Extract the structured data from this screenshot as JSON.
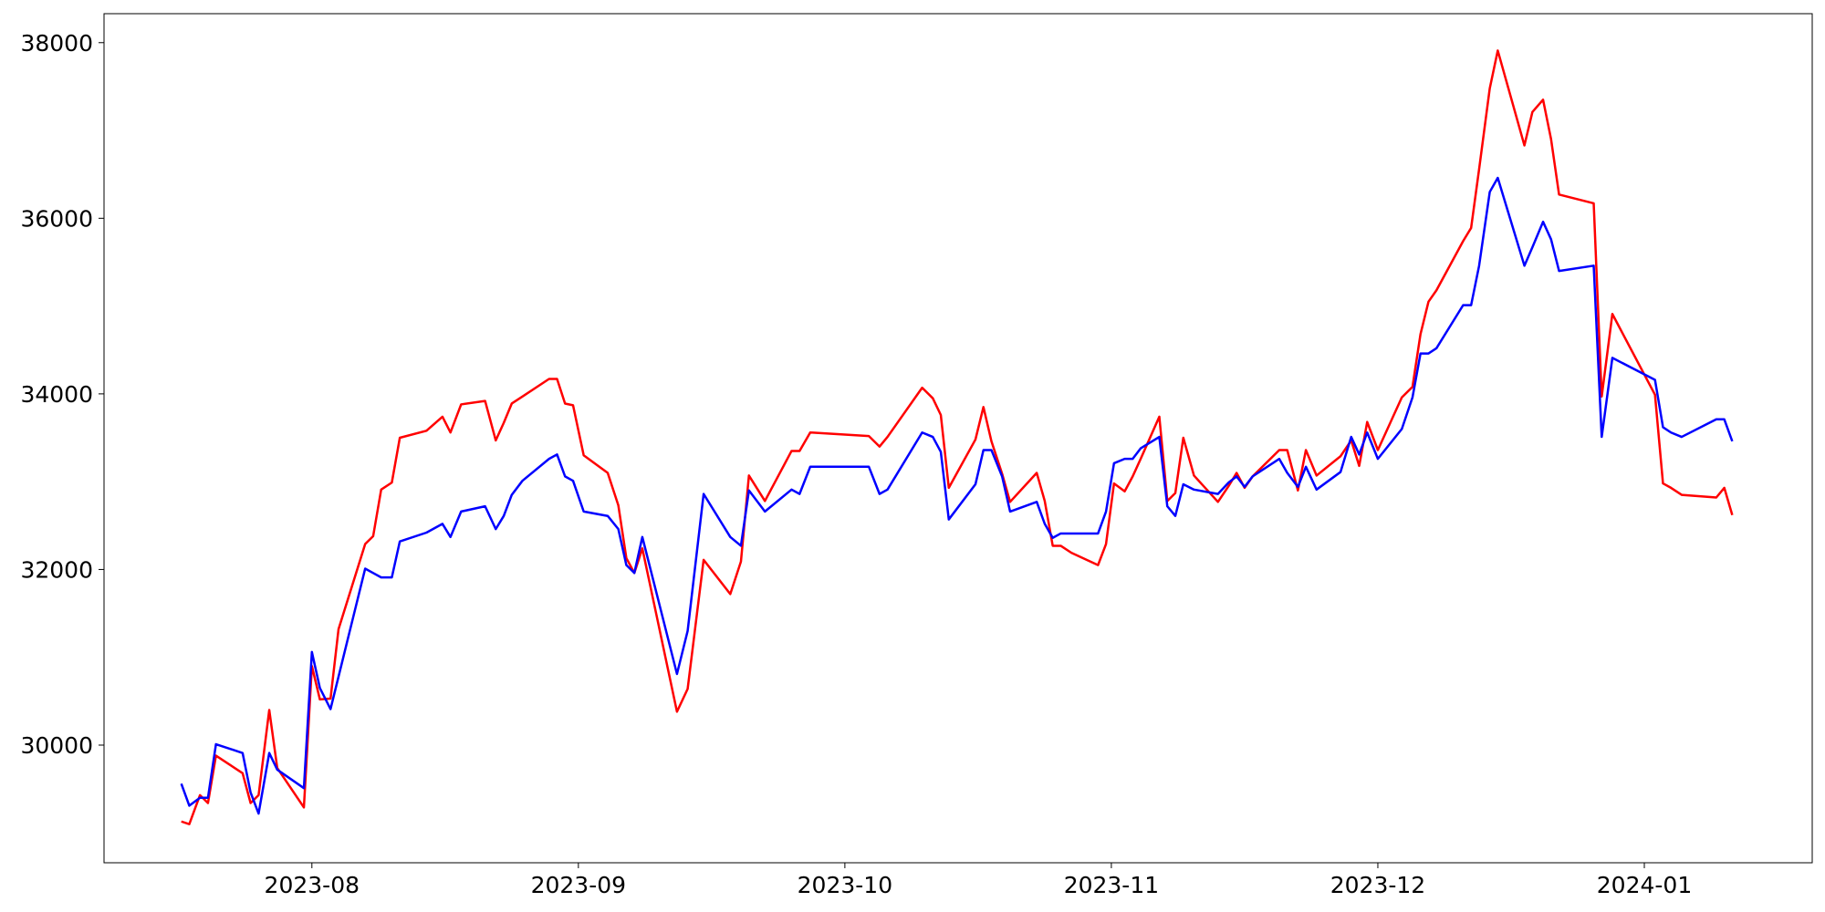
{
  "chart_data": {
    "type": "line",
    "x": [
      7.51,
      7.54,
      7.58,
      7.61,
      7.64,
      7.74,
      7.77,
      7.8,
      7.84,
      7.87,
      7.97,
      8.0,
      8.03,
      8.07,
      8.1,
      8.2,
      8.23,
      8.26,
      8.3,
      8.33,
      8.43,
      8.49,
      8.52,
      8.56,
      8.65,
      8.69,
      8.72,
      8.75,
      8.79,
      8.89,
      8.92,
      8.95,
      8.98,
      9.02,
      9.11,
      9.15,
      9.18,
      9.21,
      9.24,
      9.37,
      9.41,
      9.47,
      9.57,
      9.61,
      9.64,
      9.7,
      9.8,
      9.83,
      9.87,
      10.09,
      10.13,
      10.16,
      10.29,
      10.33,
      10.36,
      10.39,
      10.49,
      10.52,
      10.55,
      10.59,
      10.62,
      10.72,
      10.75,
      10.78,
      10.81,
      10.85,
      10.95,
      10.98,
      11.01,
      11.05,
      11.08,
      11.11,
      11.18,
      11.21,
      11.24,
      11.27,
      11.31,
      11.4,
      11.44,
      11.47,
      11.5,
      11.53,
      11.63,
      11.66,
      11.7,
      11.73,
      11.77,
      11.86,
      11.9,
      11.93,
      11.96,
      12.0,
      12.09,
      12.13,
      12.16,
      12.19,
      12.22,
      12.32,
      12.35,
      12.38,
      12.42,
      12.45,
      12.55,
      12.58,
      12.62,
      12.65,
      12.68,
      12.81,
      12.84,
      12.88,
      13.04,
      13.07,
      13.1,
      13.14,
      13.27,
      13.3,
      13.33
    ],
    "series": [
      {
        "color": "#ff0000",
        "values": [
          29130,
          29100,
          29430,
          29340,
          29880,
          29680,
          29340,
          29430,
          30400,
          29740,
          29290,
          30900,
          30520,
          30530,
          31320,
          32290,
          32380,
          32910,
          32990,
          33500,
          33580,
          33740,
          33560,
          33880,
          33920,
          33470,
          33670,
          33890,
          33970,
          34170,
          34170,
          33890,
          33870,
          33300,
          33100,
          32730,
          32130,
          31960,
          32240,
          30380,
          30640,
          32110,
          31720,
          32090,
          33070,
          32780,
          33350,
          33350,
          33560,
          33520,
          33400,
          33510,
          34070,
          33950,
          33760,
          32930,
          33480,
          33850,
          33460,
          33090,
          32770,
          33100,
          32780,
          32270,
          32270,
          32190,
          32050,
          32290,
          32980,
          32890,
          33060,
          33260,
          33740,
          32780,
          32870,
          33500,
          33070,
          32770,
          32950,
          33100,
          32930,
          33060,
          33360,
          33360,
          32900,
          33360,
          33070,
          33290,
          33470,
          33180,
          33680,
          33360,
          33960,
          34080,
          34680,
          35050,
          35180,
          35740,
          35890,
          36560,
          37480,
          37910,
          36830,
          37210,
          37350,
          36900,
          36270,
          36170,
          33970,
          34910,
          33990,
          32980,
          32930,
          32850,
          32820,
          32930,
          32620
        ]
      },
      {
        "color": "#0000ff",
        "values": [
          29560,
          29310,
          29400,
          29400,
          30010,
          29910,
          29460,
          29220,
          29910,
          29720,
          29510,
          31060,
          30650,
          30410,
          30780,
          32010,
          31960,
          31910,
          31910,
          32320,
          32420,
          32520,
          32370,
          32660,
          32720,
          32460,
          32610,
          32850,
          33010,
          33260,
          33310,
          33060,
          33010,
          32660,
          32610,
          32460,
          32050,
          31960,
          32370,
          30810,
          31300,
          32860,
          32370,
          32270,
          32900,
          32660,
          32910,
          32860,
          33170,
          33170,
          32860,
          32910,
          33560,
          33510,
          33340,
          32570,
          32970,
          33360,
          33360,
          33060,
          32660,
          32770,
          32520,
          32360,
          32410,
          32410,
          32410,
          32660,
          33210,
          33260,
          33260,
          33380,
          33510,
          32720,
          32610,
          32970,
          32910,
          32860,
          32990,
          33060,
          32940,
          33060,
          33260,
          33100,
          32940,
          33170,
          32910,
          33110,
          33510,
          33310,
          33560,
          33260,
          33600,
          33960,
          34460,
          34460,
          34520,
          35010,
          35010,
          35460,
          36300,
          36460,
          35460,
          35670,
          35960,
          35760,
          35400,
          35460,
          33510,
          34410,
          34160,
          33620,
          33560,
          33510,
          33710,
          33710,
          33460
        ]
      }
    ],
    "xlim": [
      7.22,
      13.63
    ],
    "xticks": [
      {
        "value": 8,
        "label": "2023-08"
      },
      {
        "value": 9,
        "label": "2023-09"
      },
      {
        "value": 10,
        "label": "2023-10"
      },
      {
        "value": 11,
        "label": "2023-11"
      },
      {
        "value": 12,
        "label": "2023-12"
      },
      {
        "value": 13,
        "label": "2024-01"
      }
    ],
    "ylim": [
      28660,
      38330
    ],
    "yticks": [
      30000,
      32000,
      34000,
      36000,
      38000
    ],
    "grid": false
  }
}
